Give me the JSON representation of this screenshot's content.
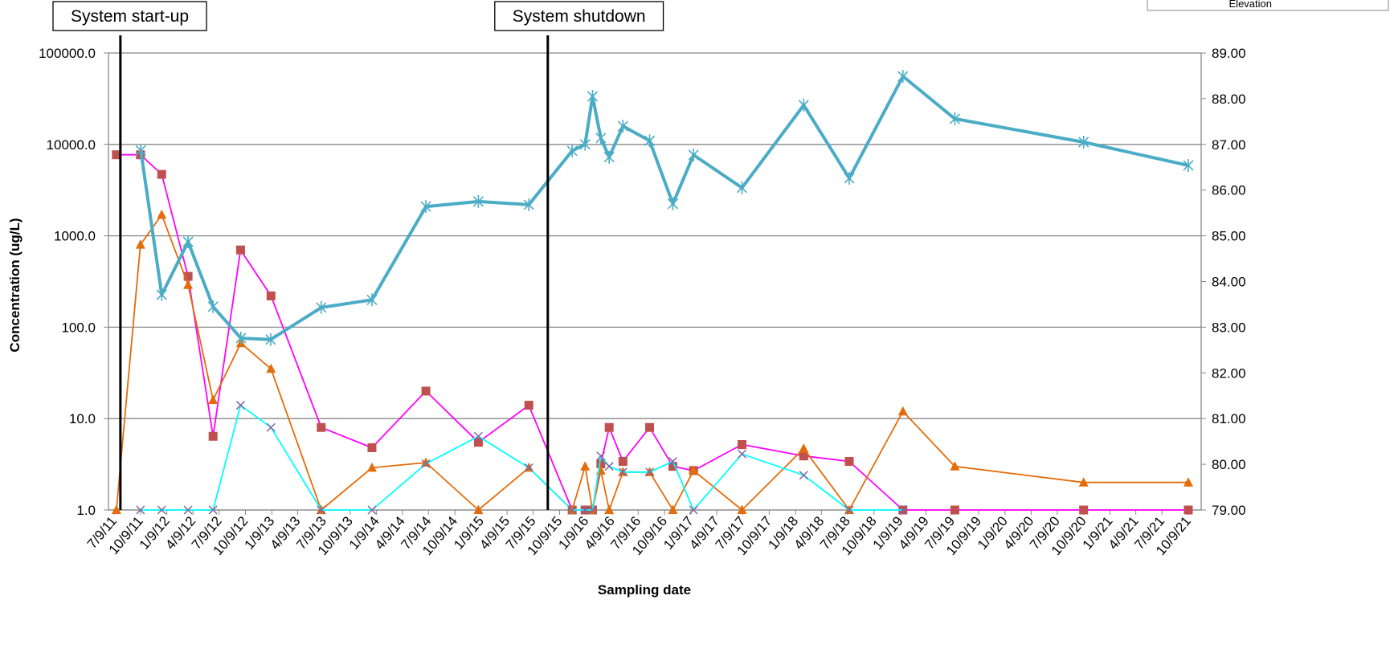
{
  "chart_data": {
    "type": "line",
    "xlabel": "Sampling date",
    "ylabel": "Concentration (ug/L)",
    "ylog": true,
    "grid": true,
    "ylim": [
      1,
      100000
    ],
    "yticks": [
      {
        "value": 1,
        "label": "1.0"
      },
      {
        "value": 10,
        "label": "10.0"
      },
      {
        "value": 100,
        "label": "100.0"
      },
      {
        "value": 1000,
        "label": "1000.0"
      },
      {
        "value": 10000,
        "label": "10000.0"
      },
      {
        "value": 100000,
        "label": "100000.0"
      }
    ],
    "y2lim": [
      79,
      89
    ],
    "y2ticks": [
      {
        "value": 79,
        "label": "79.00"
      },
      {
        "value": 80,
        "label": "80.00"
      },
      {
        "value": 81,
        "label": "81.00"
      },
      {
        "value": 82,
        "label": "82.00"
      },
      {
        "value": 83,
        "label": "83.00"
      },
      {
        "value": 84,
        "label": "84.00"
      },
      {
        "value": 85,
        "label": "85.00"
      },
      {
        "value": 86,
        "label": "86.00"
      },
      {
        "value": 87,
        "label": "87.00"
      },
      {
        "value": 88,
        "label": "88.00"
      },
      {
        "value": 89,
        "label": "89.00"
      }
    ],
    "xticks": [
      "7/9/11",
      "10/9/11",
      "1/9/12",
      "4/9/12",
      "7/9/12",
      "10/9/12",
      "1/9/13",
      "4/9/13",
      "7/9/13",
      "10/9/13",
      "1/9/14",
      "4/9/14",
      "7/9/14",
      "10/9/14",
      "1/9/15",
      "4/9/15",
      "7/9/15",
      "10/9/15",
      "1/9/16",
      "4/9/16",
      "7/9/16",
      "10/9/16",
      "1/9/17",
      "4/9/17",
      "7/9/17",
      "10/9/17",
      "1/9/18",
      "4/9/18",
      "7/9/18",
      "10/9/18",
      "1/9/19",
      "4/9/19",
      "7/9/19",
      "10/9/19",
      "1/9/20",
      "4/9/20",
      "7/9/20",
      "10/9/20",
      "1/9/21",
      "4/9/21",
      "7/9/21",
      "10/9/21"
    ],
    "legend": "top-right",
    "annotations": [
      {
        "text": "System start-up",
        "x": "7/31/11"
      },
      {
        "text": "System shutdown",
        "x": "8/29/15"
      }
    ],
    "series": [
      {
        "color": "#ff00ff",
        "marker": "square",
        "marker_color": "#c0504d",
        "x": [
          "7/17/11",
          "10/9/11",
          "12/22/11",
          "3/23/12",
          "6/18/12",
          "9/22/12",
          "1/6/13",
          "6/30/13",
          "12/24/13",
          "6/30/14",
          "12/30/14",
          "6/24/15",
          "11/22/15",
          "1/6/16",
          "2/1/16",
          "3/1/16",
          "3/30/16",
          "5/17/16",
          "8/18/16",
          "11/7/16",
          "1/18/17",
          "7/6/17",
          "2/6/18",
          "7/15/18",
          "1/18/19",
          "7/18/19",
          "10/9/20",
          "10/9/21"
        ],
        "values": [
          7700,
          7700,
          4700,
          360,
          6.4,
          700,
          220,
          8,
          4.8,
          20,
          5.5,
          14,
          1,
          1,
          1,
          3.2,
          8,
          3.4,
          8,
          3,
          2.7,
          5.2,
          3.9,
          3.4,
          1,
          1,
          1,
          1
        ]
      },
      {
        "color": "#e46c0a",
        "marker": "triangle",
        "marker_color": "#e46c0a",
        "x": [
          "7/17/11",
          "10/9/11",
          "12/22/11",
          "3/23/12",
          "6/18/12",
          "9/23/12",
          "1/6/13",
          "6/30/13",
          "12/24/13",
          "6/30/14",
          "12/30/14",
          "6/24/15",
          "11/22/15",
          "1/6/16",
          "2/1/16",
          "3/1/16",
          "3/30/16",
          "5/17/16",
          "8/18/16",
          "11/7/16",
          "1/18/17",
          "7/6/17",
          "2/6/18",
          "7/15/18",
          "1/18/19",
          "7/18/19",
          "10/9/20",
          "10/9/21"
        ],
        "values": [
          1,
          800,
          1700,
          290,
          16,
          67,
          35,
          1,
          2.9,
          3.3,
          1,
          2.9,
          1,
          3,
          1,
          2.7,
          1,
          2.6,
          2.6,
          1,
          2.7,
          1,
          4.7,
          1,
          12,
          3,
          2,
          2
        ]
      },
      {
        "color": "#00ffff",
        "marker": "x",
        "marker_color": "#8064a2",
        "x": [
          "10/9/11",
          "12/22/11",
          "3/23/12",
          "6/18/12",
          "9/22/12",
          "1/6/13",
          "6/30/13",
          "12/24/13",
          "6/30/14",
          "12/30/14",
          "6/24/15",
          "11/22/15",
          "1/6/16",
          "2/1/16",
          "3/1/16",
          "3/30/16",
          "5/17/16",
          "8/18/16",
          "11/7/16",
          "1/18/17",
          "7/6/17",
          "2/6/18",
          "7/15/18",
          "1/18/19"
        ],
        "values": [
          1,
          1,
          1,
          1,
          14,
          8,
          1,
          1,
          3.2,
          6.4,
          2.9,
          1,
          1,
          1,
          3.9,
          3,
          2.6,
          2.6,
          3.4,
          1,
          4.1,
          2.4,
          1,
          1
        ]
      },
      {
        "name": "Elevation",
        "color": "#4bacc6",
        "marker": "star",
        "marker_color": "#4bacc6",
        "axis": "y2",
        "x": [
          "10/10/11",
          "12/22/11",
          "3/23/12",
          "6/18/12",
          "9/23/12",
          "1/5/13",
          "6/30/13",
          "12/24/13",
          "6/30/14",
          "12/30/14",
          "6/24/15",
          "11/22/15",
          "1/6/16",
          "2/1/16",
          "3/1/16",
          "3/30/16",
          "5/17/16",
          "8/18/16",
          "11/7/16",
          "1/18/17",
          "7/6/17",
          "2/6/18",
          "7/15/18",
          "1/18/19",
          "7/18/19",
          "10/9/20",
          "10/9/21"
        ],
        "values": [
          86.87,
          83.71,
          84.87,
          83.45,
          82.76,
          82.73,
          83.43,
          83.6,
          85.64,
          85.75,
          85.68,
          86.86,
          87.0,
          88.05,
          87.14,
          86.72,
          87.4,
          87.08,
          85.7,
          86.77,
          86.05,
          87.86,
          86.26,
          88.49,
          87.56,
          87.05,
          86.54
        ]
      }
    ]
  }
}
